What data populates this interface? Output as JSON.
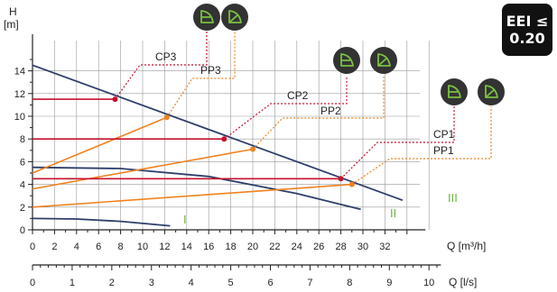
{
  "badge": {
    "line1": "EEI ≤",
    "line2": "0.20"
  },
  "icons": {
    "name": "pump-mode-icon",
    "color": "#333333",
    "accent": "#7ac143"
  },
  "colors": {
    "curve": "#2e3f6b",
    "const_pressure": "#c8102e",
    "prop_pressure": "#f0821e",
    "roman": "#6db33f",
    "grid": "#999999"
  },
  "chart_data": {
    "type": "line",
    "xlabel": "Q [m³/h]",
    "ylabel": "H\n[m]",
    "xlim": [
      0,
      36
    ],
    "ylim": [
      0,
      15
    ],
    "xticks": [
      0,
      2,
      4,
      6,
      8,
      10,
      12,
      14,
      16,
      18,
      20,
      22,
      24,
      26,
      28,
      30,
      32
    ],
    "yticks": [
      0,
      2,
      4,
      6,
      8,
      10,
      12,
      14
    ],
    "secondary_axis": {
      "label": "Q [l/s]",
      "ticks": [
        0,
        1,
        2,
        3,
        4,
        5,
        6,
        7,
        8,
        9,
        10
      ],
      "factor": 3.6
    },
    "grid": true,
    "curves": [
      {
        "label": "I",
        "points": [
          [
            0,
            1.0
          ],
          [
            4,
            0.95
          ],
          [
            8,
            0.75
          ],
          [
            12.5,
            0.35
          ]
        ]
      },
      {
        "label": "II",
        "points": [
          [
            0,
            5.5
          ],
          [
            8,
            5.4
          ],
          [
            16,
            4.7
          ],
          [
            24,
            3.2
          ],
          [
            29.8,
            1.8
          ]
        ]
      },
      {
        "label": "III",
        "points": [
          [
            0,
            14.5
          ],
          [
            33.6,
            2.6
          ]
        ]
      }
    ],
    "series": [
      {
        "name": "CP3",
        "kind": "const",
        "points": [
          [
            0,
            11.5
          ],
          [
            7.5,
            11.5
          ]
        ]
      },
      {
        "name": "PP3",
        "kind": "prop",
        "points": [
          [
            0,
            5.0
          ],
          [
            12.2,
            9.9
          ]
        ]
      },
      {
        "name": "CP2",
        "kind": "const",
        "points": [
          [
            0,
            8.0
          ],
          [
            17.4,
            8.0
          ]
        ]
      },
      {
        "name": "PP2",
        "kind": "prop",
        "points": [
          [
            0,
            3.6
          ],
          [
            20,
            7.1
          ]
        ]
      },
      {
        "name": "CP1",
        "kind": "const",
        "points": [
          [
            0,
            4.5
          ],
          [
            28,
            4.5
          ]
        ]
      },
      {
        "name": "PP1",
        "kind": "prop",
        "points": [
          [
            0,
            2.0
          ],
          [
            29,
            4.0
          ]
        ]
      }
    ]
  }
}
